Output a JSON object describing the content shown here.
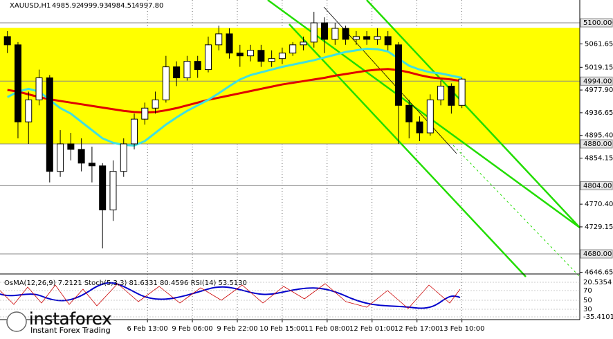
{
  "chart_data": {
    "type": "candlestick",
    "title": "XAUUSD,H1",
    "title_values": [
      4985.92,
      4999.93,
      4984.51,
      {
        "value": 4997.8,
        "label": "4997.80"
      }
    ],
    "x": [
      2,
      6,
      10,
      14,
      18,
      22,
      26,
      30,
      34,
      38,
      42,
      46,
      50,
      54,
      58,
      62,
      66,
      70,
      74,
      78,
      82,
      86,
      90,
      94,
      98,
      102,
      106,
      110,
      114,
      118,
      122,
      126,
      130,
      134,
      138,
      142,
      146,
      150,
      154,
      158,
      162,
      166,
      170,
      174
    ],
    "open": [
      5075,
      5060,
      4920,
      4960,
      5000,
      4830,
      4880,
      4870,
      4845,
      4840,
      4760,
      4830,
      4880,
      4925,
      4945,
      4960,
      5020,
      5000,
      5030,
      5015,
      5060,
      5080,
      5045,
      5040,
      5050,
      5030,
      5035,
      5045,
      5060,
      5065,
      5100,
      5070,
      5090,
      5070,
      5075,
      5070,
      5075,
      5060,
      4950,
      4920,
      4900,
      4960,
      4985,
      4950
    ],
    "high": [
      5085,
      5065,
      4975,
      5015,
      5005,
      4905,
      4900,
      4890,
      4875,
      4845,
      4850,
      4890,
      4935,
      4955,
      4975,
      5040,
      5030,
      5040,
      5040,
      5075,
      5095,
      5090,
      5060,
      5060,
      5060,
      5050,
      5055,
      5065,
      5075,
      5120,
      5110,
      5100,
      5095,
      5085,
      5085,
      5090,
      5085,
      5065,
      4960,
      4930,
      4970,
      4995,
      4990,
      4999.93
    ],
    "low": [
      5045,
      4890,
      4880,
      4950,
      4810,
      4820,
      4850,
      4830,
      4810,
      4690,
      4740,
      4820,
      4870,
      4915,
      4935,
      4955,
      4985,
      4995,
      5000,
      5010,
      5050,
      5035,
      5020,
      5030,
      5020,
      5020,
      5025,
      5040,
      5050,
      5055,
      5045,
      5060,
      5060,
      5060,
      5060,
      5060,
      5050,
      4880,
      4890,
      4885,
      4895,
      4950,
      4935,
      4945
    ],
    "close": [
      5060,
      4920,
      4960,
      5000,
      4830,
      4880,
      4870,
      4845,
      4840,
      4760,
      4830,
      4880,
      4925,
      4945,
      4960,
      5020,
      5000,
      5030,
      5015,
      5060,
      5080,
      5045,
      5040,
      5050,
      5030,
      5035,
      5045,
      5060,
      5065,
      5100,
      5070,
      5090,
      5070,
      5075,
      5070,
      5075,
      5060,
      4950,
      4920,
      4900,
      4960,
      4985,
      4950,
      4997.8
    ],
    "series": [
      {
        "name": "MA200",
        "color": "#e00000",
        "values": [
          4978,
          4975,
          4970,
          4965,
          4961,
          4958,
          4955,
          4952,
          4949,
          4946,
          4943,
          4940,
          4938,
          4937,
          4938,
          4941,
          4945,
          4950,
          4955,
          4960,
          4964,
          4968,
          4972,
          4976,
          4980,
          4984,
          4988,
          4991,
          4994,
          4997,
          5000,
          5004,
          5007,
          5010,
          5013,
          5015,
          5016,
          5014,
          5010,
          5005,
          5001,
          4999,
          4997,
          4994
        ]
      },
      {
        "name": "MA50",
        "color": "#40e0e0",
        "values": [
          4965,
          4975,
          4980,
          4975,
          4960,
          4945,
          4935,
          4920,
          4905,
          4890,
          4882,
          4878,
          4877,
          4885,
          4900,
          4915,
          4928,
          4940,
          4950,
          4960,
          4972,
          4985,
          4997,
          5005,
          5010,
          5015,
          5020,
          5024,
          5028,
          5032,
          5037,
          5042,
          5047,
          5050,
          5053,
          5052,
          5048,
          5035,
          5022,
          5015,
          5010,
          5008,
          5004,
          5000
        ]
      }
    ],
    "xlim": [
      -0.8,
      218.6
    ],
    "ylim": [
      4644.8,
      5141.5
    ],
    "xticks": [
      {
        "value": 55,
        "label": "6 Feb 13:00"
      },
      {
        "value": 72,
        "label": "9 Feb 06:00"
      },
      {
        "value": 89,
        "label": "9 Feb 22:00"
      },
      {
        "value": 106,
        "label": "10 Feb 15:00"
      },
      {
        "value": 123,
        "label": "11 Feb 08:00"
      },
      {
        "value": 140,
        "label": "12 Feb 01:00"
      },
      {
        "value": 157,
        "label": "12 Feb 17:00"
      },
      {
        "value": 174,
        "label": "13 Feb 10:00"
      }
    ],
    "yticks": [
      {
        "value": 5100,
        "label": "5100.00"
      },
      {
        "value": 5061.65,
        "label": "5061.65"
      },
      {
        "value": 5019.15,
        "label": "5019.15"
      },
      {
        "value": 4977.9,
        "label": "4977.90"
      },
      {
        "value": 4936.65,
        "label": "4936.65"
      },
      {
        "value": 4895.4,
        "label": "4895.40"
      },
      {
        "value": 4854.15,
        "label": "4854.15"
      },
      {
        "value": 4770.4,
        "label": "4770.40"
      },
      {
        "value": 4729.15,
        "label": "4729.15"
      },
      {
        "value": 4646.65,
        "label": "4646.65"
      }
    ],
    "levels": [
      {
        "value": 5100,
        "label": "5100.00"
      },
      {
        "value": 4994,
        "label": "4994.00"
      },
      {
        "value": 4880,
        "label": "4880.00"
      },
      {
        "value": 4804,
        "label": "4804.00"
      },
      {
        "value": 4680,
        "label": "4680.00"
      }
    ],
    "zone": [
      4880,
      5091
    ],
    "zone_color": "#ffff00",
    "indicator_header": "OsMA(12,26,9) 7.2121  Stoch(5,3,3) 81.6331 80.4596  RSI(14) 53.5130",
    "indicator_yticks": [
      {
        "value": 20.5354,
        "label": "20.5354"
      },
      70,
      50,
      30,
      {
        "value": -35.4101,
        "label": "-35.4101"
      }
    ],
    "logo": "instaforex",
    "logo_tagline": "Instant Forex Trading"
  }
}
